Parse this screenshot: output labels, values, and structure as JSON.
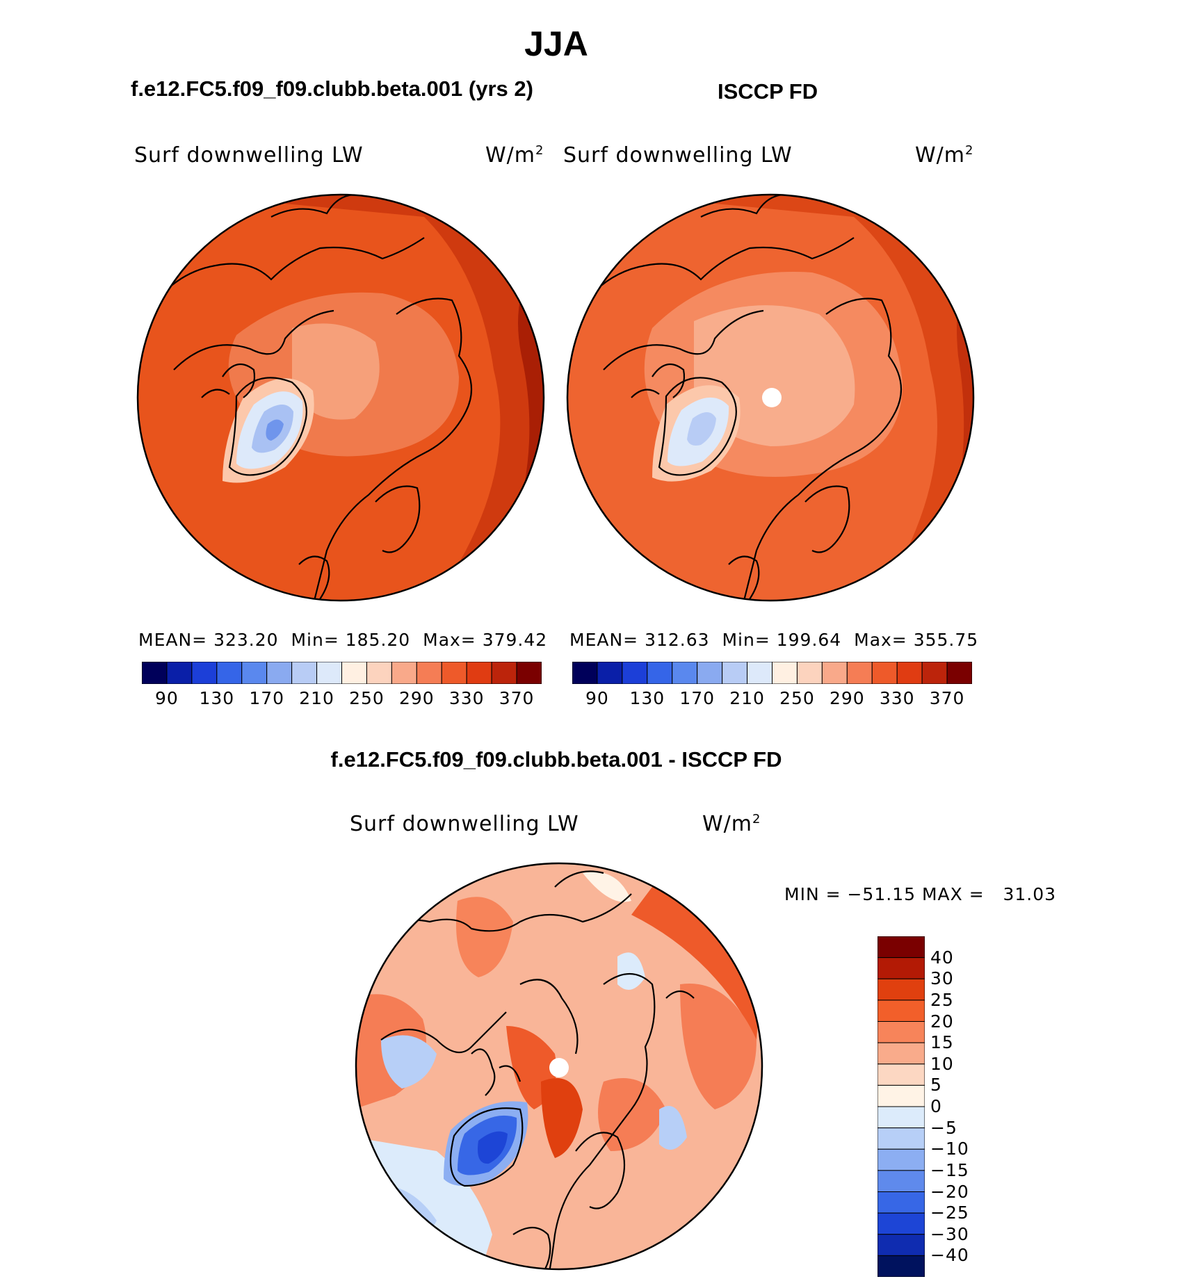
{
  "season_title": "JJA",
  "panel_left": {
    "title": "f.e12.FC5.f09_f09.clubb.beta.001 (yrs 2)",
    "variable": "Surf downwelling LW",
    "units_base": "W/m",
    "units_exp": "2",
    "stats": {
      "mean_label": "MEAN=",
      "mean": "323.20",
      "min_label": "Min=",
      "min": "185.20",
      "max_label": "Max=",
      "max": "379.42"
    },
    "colorbar_ticks": [
      "90",
      "130",
      "170",
      "210",
      "250",
      "290",
      "330",
      "370"
    ]
  },
  "panel_right": {
    "title": "ISCCP FD",
    "variable": "Surf downwelling LW",
    "units_base": "W/m",
    "units_exp": "2",
    "stats": {
      "mean_label": "MEAN=",
      "mean": "312.63",
      "min_label": "Min=",
      "min": "199.64",
      "max_label": "Max=",
      "max": "355.75"
    },
    "colorbar_ticks": [
      "90",
      "130",
      "170",
      "210",
      "250",
      "290",
      "330",
      "370"
    ]
  },
  "panel_diff": {
    "title": "f.e12.FC5.f09_f09.clubb.beta.001 - ISCCP FD",
    "variable": "Surf downwelling LW",
    "units_base": "W/m",
    "units_exp": "2",
    "minmax_text": "MIN = −51.15 MAX =   31.03",
    "colorbar_labels": [
      "40",
      "30",
      "25",
      "20",
      "15",
      "10",
      "5",
      "0",
      "−5",
      "−10",
      "−15",
      "−20",
      "−25",
      "−30",
      "−40"
    ]
  },
  "colors": {
    "abs_scale": [
      "#00005a",
      "#0a1fa8",
      "#1c3fd8",
      "#3565e8",
      "#5a88ee",
      "#8aaaf0",
      "#b8ccf5",
      "#dde9fa",
      "#fff0e2",
      "#fcd3be",
      "#f9a98a",
      "#f57d55",
      "#ee5a2a",
      "#e03c12",
      "#bc240b",
      "#7a0000"
    ],
    "diff_scale": [
      "#7a0000",
      "#b31a05",
      "#e0400f",
      "#f25f2a",
      "#f7845a",
      "#f9ab8b",
      "#fcd7c2",
      "#fff3e6",
      "#dcebfb",
      "#b7cff7",
      "#8caef2",
      "#5f8aec",
      "#3767e6",
      "#1d45d6",
      "#0f2cb0",
      "#00125e"
    ],
    "ocean_abs_left": "#e8541c",
    "ocean_abs_right": "#ee6430",
    "ocean_diff": "#f9b598",
    "coast": "#000000"
  }
}
